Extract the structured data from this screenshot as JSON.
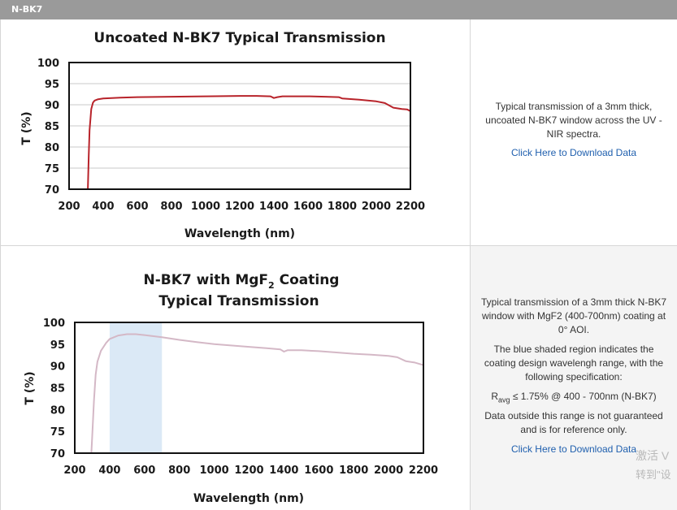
{
  "header": {
    "title": "N-BK7"
  },
  "chart_data": [
    {
      "type": "line",
      "title": "Uncoated N-BK7 Typical Transmission",
      "xlabel": "Wavelength (nm)",
      "ylabel": "T (%)",
      "xlim": [
        200,
        2200
      ],
      "ylim": [
        70,
        100
      ],
      "xticks": [
        200,
        400,
        600,
        800,
        1000,
        1200,
        1400,
        1600,
        1800,
        2000,
        2200
      ],
      "yticks": [
        70,
        75,
        80,
        85,
        90,
        95,
        100
      ],
      "grid": true,
      "color": "#b8232a",
      "series": [
        {
          "x": [
            310,
            315,
            320,
            330,
            340,
            350,
            370,
            400,
            500,
            600,
            800,
            1000,
            1200,
            1300,
            1380,
            1400,
            1420,
            1450,
            1600,
            1700,
            1780,
            1800,
            1900,
            2000,
            2050,
            2100,
            2150,
            2180,
            2200
          ],
          "values": [
            70,
            78,
            84,
            89,
            90.5,
            91,
            91.3,
            91.5,
            91.7,
            91.8,
            91.9,
            92.0,
            92.1,
            92.1,
            92.0,
            91.6,
            91.8,
            92.0,
            92.0,
            91.9,
            91.8,
            91.5,
            91.2,
            90.8,
            90.4,
            89.3,
            89.0,
            88.9,
            88.5
          ]
        }
      ]
    },
    {
      "type": "line",
      "title": "N-BK7 with MgF",
      "title_sub": "2",
      "title_suffix": " Coating",
      "title_line2": "Typical Transmission",
      "xlabel": "Wavelength (nm)",
      "ylabel": "T (%)",
      "xlim": [
        200,
        2200
      ],
      "ylim": [
        70,
        100
      ],
      "xticks": [
        200,
        400,
        600,
        800,
        1000,
        1200,
        1400,
        1600,
        1800,
        2000,
        2200
      ],
      "yticks": [
        70,
        75,
        80,
        85,
        90,
        95,
        100
      ],
      "grid": false,
      "color": "#d4b8c6",
      "shaded_region": {
        "x": [
          400,
          700
        ],
        "color": "#dbe9f6"
      },
      "series": [
        {
          "x": [
            295,
            300,
            310,
            320,
            330,
            350,
            380,
            400,
            450,
            500,
            550,
            600,
            700,
            800,
            900,
            1000,
            1200,
            1300,
            1380,
            1400,
            1420,
            1500,
            1600,
            1700,
            1800,
            1900,
            2000,
            2050,
            2100,
            2150,
            2200
          ],
          "values": [
            70,
            74,
            82,
            88,
            91,
            93.5,
            95.3,
            96.2,
            97,
            97.3,
            97.3,
            97.1,
            96.6,
            96.0,
            95.5,
            95.0,
            94.4,
            94.1,
            93.8,
            93.3,
            93.6,
            93.6,
            93.4,
            93.1,
            92.8,
            92.6,
            92.3,
            92.0,
            91.1,
            90.8,
            90.2
          ]
        }
      ]
    }
  ],
  "info1": {
    "description": "Typical transmission of a 3mm thick, uncoated N-BK7 window across the UV - NIR spectra.",
    "link": "Click Here to Download Data"
  },
  "info2": {
    "description": "Typical transmission of a 3mm thick N-BK7 window with MgF2 (400-700nm) coating at 0° AOI.",
    "shade_note": "The blue shaded region indicates the coating design wavelengh range, with the following specification:",
    "spec_r": "R",
    "spec_sub": "avg",
    "spec_rest": " ≤ 1.75% @ 400 - 700nm (N-BK7)",
    "disclaimer": "Data outside this range is not guaranteed and is for reference only.",
    "link": "Click Here to Download Data"
  },
  "watermark": {
    "line1": "激活 V",
    "line2": "转到\"设"
  }
}
